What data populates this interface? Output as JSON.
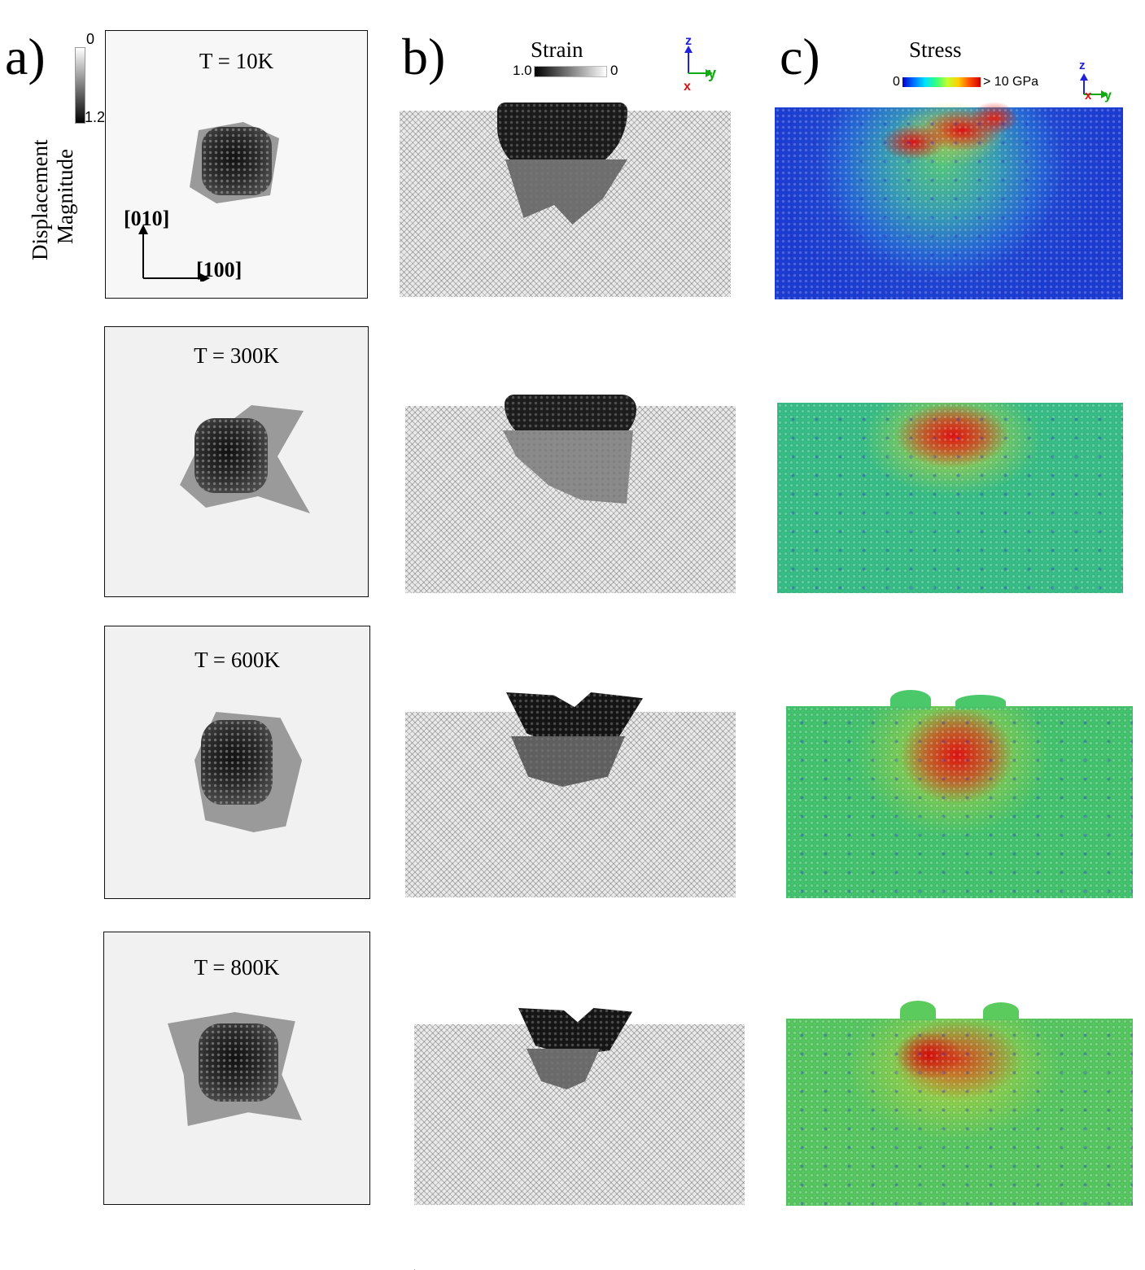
{
  "panel_labels": {
    "a": "a)",
    "b": "b)",
    "c": "c)"
  },
  "displacement": {
    "label_line1": "Displacement",
    "label_line2": "Magnitude",
    "scale_min": "0",
    "scale_max": "1.2"
  },
  "directions": {
    "vertical": "[010]",
    "horizontal": "[100]"
  },
  "temperatures": [
    "T = 10K",
    "T = 300K",
    "T = 600K",
    "T = 800K"
  ],
  "strain": {
    "title": "Strain",
    "scale_left": "1.0",
    "scale_right": "0"
  },
  "stress": {
    "title": "Stress",
    "scale_left": "0",
    "scale_right": "> 10 GPa"
  },
  "axes_b": {
    "z": "z",
    "x": "x",
    "y": "y"
  },
  "axes_c": {
    "z": "z",
    "x": "x",
    "y": "y"
  },
  "colors": {
    "axis_z": "#2222dd",
    "axis_x": "#dd1111",
    "axis_y": "#11aa11",
    "stress_low": "#1a3bd6",
    "stress_mid": "#2cc07a",
    "stress_high": "#e01010"
  }
}
